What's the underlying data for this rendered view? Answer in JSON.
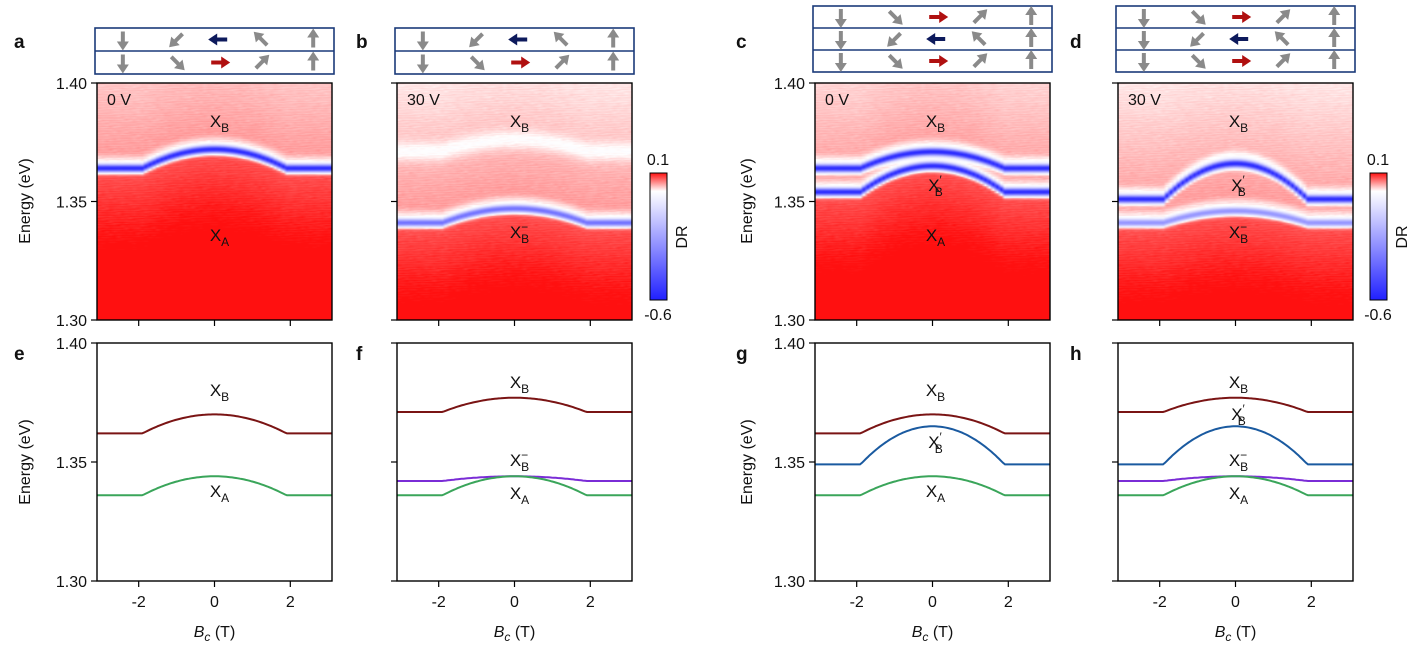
{
  "figure": {
    "dr_colorbar": {
      "label": "DR",
      "max_label": "0.1",
      "min_label": "-0.6",
      "colors": [
        "#2020ff",
        "#ffffff",
        "#ff1010"
      ]
    },
    "top_panels": [
      {
        "id": "a",
        "voltage": "0 V",
        "layers": 2
      },
      {
        "id": "b",
        "voltage": "30 V",
        "layers": 2
      },
      {
        "id": "c",
        "voltage": "0 V",
        "layers": 3
      },
      {
        "id": "d",
        "voltage": "30 V",
        "layers": 3
      }
    ],
    "bottom_panels": [
      {
        "id": "e"
      },
      {
        "id": "f"
      },
      {
        "id": "g"
      },
      {
        "id": "h"
      }
    ],
    "annotations": {
      "XB": "X",
      "sub_B": "B",
      "sub_A": "A",
      "sup_minus": "−",
      "sup_prime": "′"
    },
    "energy_axis_label": "Energy (eV)",
    "field_axis_label": {
      "var": "B",
      "sub": "c",
      "unit": " (T)"
    },
    "spin_arrows": {
      "pattern": [
        "down",
        "down-left",
        "left",
        "up-left",
        "up"
      ],
      "center_color_top": "#0d1a5c",
      "center_color_bottom": "#b01010",
      "side_color": "#8a8a8a"
    }
  },
  "chart_data": [
    {
      "type": "heatmap",
      "panel": "a",
      "title": "0 V",
      "xlabel": "B_c (T)",
      "ylabel": "Energy (eV)",
      "xlim": [
        -3.1,
        3.1
      ],
      "ylim": [
        1.3,
        1.4
      ],
      "y_ticks": [
        "1.30",
        "1.35",
        "1.40"
      ],
      "color_range": [
        -0.6,
        0.1
      ],
      "features": [
        {
          "name": "X_B",
          "type": "dip",
          "E_flat": 1.364,
          "E_peak": 1.372,
          "Bc": 1.9,
          "strength": -0.6
        },
        {
          "name": "X_A",
          "type": "label-only",
          "E_flat": 1.336,
          "E_peak": 1.344,
          "Bc": 1.9
        }
      ],
      "labels": [
        "X_B",
        "X_A"
      ]
    },
    {
      "type": "heatmap",
      "panel": "b",
      "title": "30 V",
      "xlim": [
        -3.1,
        3.1
      ],
      "ylim": [
        1.3,
        1.4
      ],
      "color_range": [
        -0.6,
        0.1
      ],
      "features": [
        {
          "name": "X_B^-",
          "type": "dip",
          "E_flat": 1.341,
          "E_peak": 1.347,
          "Bc": 1.9,
          "strength": -0.4
        },
        {
          "name": "X_B",
          "type": "faint",
          "E_flat": 1.371,
          "E_peak": 1.376,
          "Bc": 1.9
        }
      ],
      "labels": [
        "X_B",
        "X_B^-"
      ]
    },
    {
      "type": "heatmap",
      "panel": "c",
      "title": "0 V",
      "xlim": [
        -3.1,
        3.1
      ],
      "ylim": [
        1.3,
        1.4
      ],
      "color_range": [
        -0.6,
        0.1
      ],
      "features": [
        {
          "name": "X_B",
          "type": "dip",
          "E_flat": 1.364,
          "E_peak": 1.371,
          "Bc": 1.9,
          "strength": -0.6
        },
        {
          "name": "X_B'",
          "type": "dip",
          "E_flat": 1.354,
          "E_peak": 1.365,
          "Bc": 1.9,
          "strength": -0.6
        }
      ],
      "labels": [
        "X_B",
        "X_B'",
        "X_A"
      ]
    },
    {
      "type": "heatmap",
      "panel": "d",
      "title": "30 V",
      "xlim": [
        -3.1,
        3.1
      ],
      "ylim": [
        1.3,
        1.4
      ],
      "color_range": [
        -0.6,
        0.1
      ],
      "features": [
        {
          "name": "X_B'",
          "type": "dip",
          "E_flat": 1.351,
          "E_peak": 1.366,
          "Bc": 1.9,
          "strength": -0.6
        },
        {
          "name": "X_B^-",
          "type": "dip",
          "E_flat": 1.341,
          "E_peak": 1.346,
          "Bc": 1.9,
          "strength": -0.3
        }
      ],
      "labels": [
        "X_B",
        "X_B'",
        "X_B^-"
      ]
    },
    {
      "type": "line",
      "panel": "e",
      "xlabel": "B_c (T)",
      "ylabel": "Energy (eV)",
      "xlim": [
        -3.1,
        3.1
      ],
      "ylim": [
        1.3,
        1.4
      ],
      "x_ticks": [
        "-2",
        "0",
        "2"
      ],
      "y_ticks": [
        "1.30",
        "1.35",
        "1.40"
      ],
      "series": [
        {
          "name": "X_B",
          "color": "#7a1414",
          "E_flat": 1.362,
          "E_peak": 1.37,
          "Bc": 1.9
        },
        {
          "name": "X_A",
          "color": "#3aa55a",
          "E_flat": 1.336,
          "E_peak": 1.344,
          "Bc": 1.9
        }
      ]
    },
    {
      "type": "line",
      "panel": "f",
      "xlim": [
        -3.1,
        3.1
      ],
      "ylim": [
        1.3,
        1.4
      ],
      "series": [
        {
          "name": "X_B",
          "color": "#7a1414",
          "E_flat": 1.371,
          "E_peak": 1.377,
          "Bc": 1.9
        },
        {
          "name": "X_B^-",
          "color": "#7a2cd6",
          "E_flat": 1.342,
          "E_peak": 1.344,
          "Bc": 1.9
        },
        {
          "name": "X_A",
          "color": "#3aa55a",
          "E_flat": 1.336,
          "E_peak": 1.344,
          "Bc": 1.9
        }
      ]
    },
    {
      "type": "line",
      "panel": "g",
      "xlim": [
        -3.1,
        3.1
      ],
      "ylim": [
        1.3,
        1.4
      ],
      "series": [
        {
          "name": "X_B",
          "color": "#7a1414",
          "E_flat": 1.362,
          "E_peak": 1.37,
          "Bc": 1.9
        },
        {
          "name": "X_B'",
          "color": "#1a5aa0",
          "E_flat": 1.349,
          "E_peak": 1.365,
          "Bc": 1.9
        },
        {
          "name": "X_A",
          "color": "#3aa55a",
          "E_flat": 1.336,
          "E_peak": 1.344,
          "Bc": 1.9
        }
      ]
    },
    {
      "type": "line",
      "panel": "h",
      "xlim": [
        -3.1,
        3.1
      ],
      "ylim": [
        1.3,
        1.4
      ],
      "series": [
        {
          "name": "X_B",
          "color": "#7a1414",
          "E_flat": 1.371,
          "E_peak": 1.377,
          "Bc": 1.9
        },
        {
          "name": "X_B'",
          "color": "#1a5aa0",
          "E_flat": 1.349,
          "E_peak": 1.365,
          "Bc": 1.9
        },
        {
          "name": "X_B^-",
          "color": "#7a2cd6",
          "E_flat": 1.342,
          "E_peak": 1.344,
          "Bc": 1.9
        },
        {
          "name": "X_A",
          "color": "#3aa55a",
          "E_flat": 1.336,
          "E_peak": 1.344,
          "Bc": 1.9
        }
      ]
    }
  ]
}
